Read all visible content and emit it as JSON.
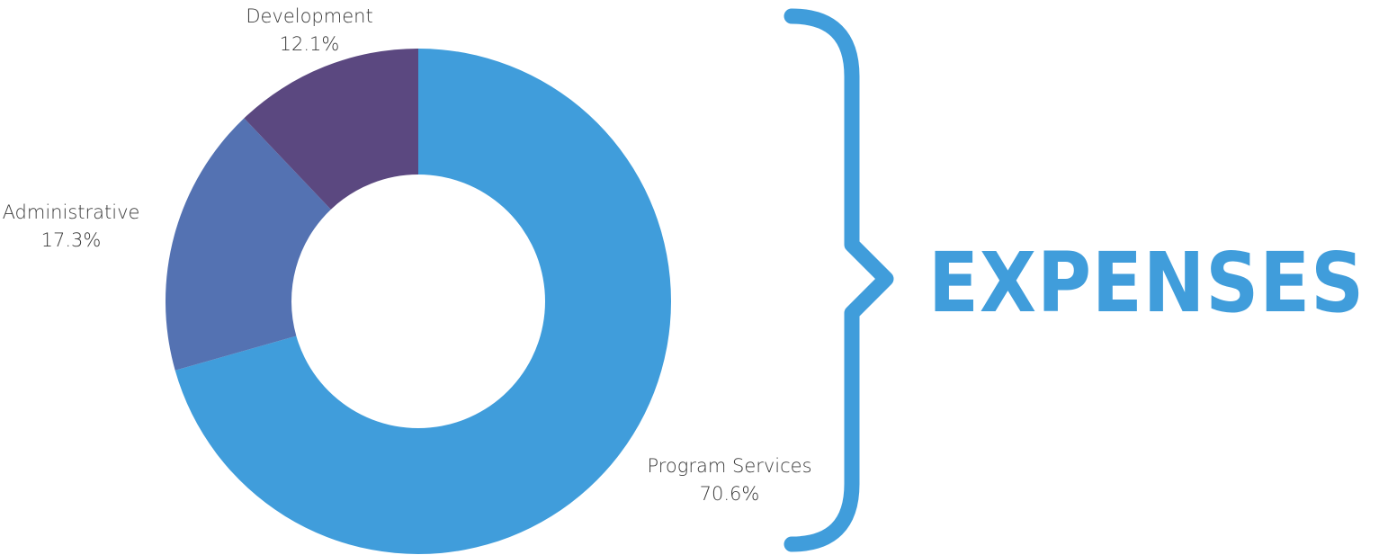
{
  "title": "EXPENSES",
  "chart_data": {
    "type": "pie",
    "variant": "donut",
    "title": "EXPENSES",
    "unit": "%",
    "slices": [
      {
        "name": "Program Services",
        "value": 70.6,
        "label": "70.6%",
        "color": "#409ddb"
      },
      {
        "name": "Administrative",
        "value": 17.3,
        "label": "17.3%",
        "color": "#5472b2"
      },
      {
        "name": "Development",
        "value": 12.1,
        "label": "12.1%",
        "color": "#5b4880"
      }
    ],
    "start_angle": "12 o'clock",
    "direction": "clockwise",
    "legend": "none",
    "accent_color": "#409ddb"
  }
}
